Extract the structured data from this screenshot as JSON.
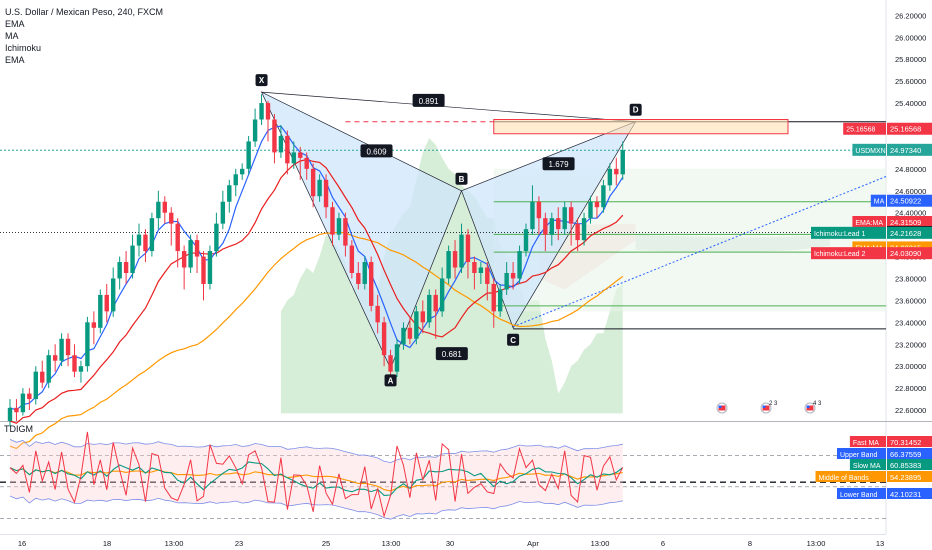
{
  "header": {
    "title": "U.S. Dollar / Mexican Peso, 240, FXCM",
    "indicators": [
      "EMA",
      "MA",
      "Ichimoku",
      "EMA"
    ]
  },
  "lower_pane": {
    "title": "TDIGM"
  },
  "colors": {
    "up": "#089981",
    "down": "#f23645",
    "ma_blue": "#2962ff",
    "ema_red": "#e91e1e",
    "ema_orange": "#ff9800",
    "harmonic_fill": "#cfe5fb",
    "cloud_green": "#a5d6a7",
    "cloud_red": "#ffcdd2",
    "price_teal": "#26a69a",
    "rsi_red": "#f23645"
  },
  "chart_data": [
    {
      "type": "candlestick",
      "title": "U.S. Dollar / Mexican Peso, 240, FXCM",
      "x_ticks": [
        "16",
        "18",
        "13:00",
        "23",
        "25",
        "13:00",
        "30",
        "Apr",
        "13:00",
        "6",
        "8",
        "13:00",
        "13"
      ],
      "y_ticks": [
        22.6,
        22.8,
        23.0,
        23.2,
        23.4,
        23.6,
        23.8,
        24.0,
        24.2,
        24.4,
        24.6,
        24.8,
        25.0,
        25.2,
        25.4,
        25.6,
        25.8,
        26.0,
        26.2
      ],
      "ylim": [
        22.5,
        26.34
      ],
      "candles": [
        [
          22.5,
          22.62,
          22.45,
          22.7
        ],
        [
          22.62,
          22.58,
          22.5,
          22.7
        ],
        [
          22.58,
          22.75,
          22.55,
          22.8
        ],
        [
          22.75,
          22.7,
          22.6,
          22.8
        ],
        [
          22.7,
          22.95,
          22.65,
          23.0
        ],
        [
          22.95,
          22.85,
          22.8,
          23.05
        ],
        [
          22.85,
          23.1,
          22.8,
          23.15
        ],
        [
          23.1,
          23.05,
          22.95,
          23.2
        ],
        [
          23.05,
          23.25,
          23.0,
          23.3
        ],
        [
          23.25,
          23.1,
          23.0,
          23.3
        ],
        [
          23.1,
          22.95,
          22.9,
          23.2
        ],
        [
          22.95,
          23.0,
          22.85,
          23.05
        ],
        [
          23.0,
          23.4,
          22.95,
          23.45
        ],
        [
          23.4,
          23.35,
          23.2,
          23.5
        ],
        [
          23.35,
          23.65,
          23.3,
          23.7
        ],
        [
          23.65,
          23.5,
          23.4,
          23.75
        ],
        [
          23.5,
          23.8,
          23.45,
          23.9
        ],
        [
          23.8,
          23.95,
          23.7,
          24.0
        ],
        [
          23.95,
          23.85,
          23.75,
          24.05
        ],
        [
          23.85,
          24.1,
          23.8,
          24.2
        ],
        [
          24.1,
          24.2,
          24.0,
          24.3
        ],
        [
          24.2,
          24.05,
          23.95,
          24.25
        ],
        [
          24.05,
          24.35,
          24.0,
          24.4
        ],
        [
          24.35,
          24.5,
          24.25,
          24.6
        ],
        [
          24.5,
          24.4,
          24.3,
          24.55
        ],
        [
          24.4,
          24.3,
          24.1,
          24.45
        ],
        [
          24.3,
          24.05,
          23.9,
          24.35
        ],
        [
          24.05,
          23.9,
          23.7,
          24.1
        ],
        [
          23.9,
          24.15,
          23.85,
          24.2
        ],
        [
          24.15,
          24.0,
          23.85,
          24.2
        ],
        [
          24.0,
          23.75,
          23.6,
          24.05
        ],
        [
          23.75,
          24.05,
          23.7,
          24.1
        ],
        [
          24.05,
          24.3,
          24.0,
          24.4
        ],
        [
          24.3,
          24.5,
          24.25,
          24.6
        ],
        [
          24.5,
          24.65,
          24.4,
          24.7
        ],
        [
          24.65,
          24.75,
          24.55,
          24.8
        ],
        [
          24.75,
          24.8,
          24.7,
          24.85
        ],
        [
          24.8,
          25.05,
          24.75,
          25.1
        ],
        [
          25.05,
          25.25,
          25.0,
          25.35
        ],
        [
          25.25,
          25.4,
          25.2,
          25.48
        ],
        [
          25.4,
          25.25,
          25.05,
          25.42
        ],
        [
          25.25,
          24.95,
          24.85,
          25.3
        ],
        [
          24.95,
          25.1,
          24.9,
          25.2
        ],
        [
          25.1,
          24.85,
          24.75,
          25.15
        ],
        [
          24.85,
          24.95,
          24.8,
          25.05
        ],
        [
          24.95,
          24.9,
          24.7,
          25.0
        ],
        [
          24.9,
          24.8,
          24.7,
          24.95
        ],
        [
          24.8,
          24.55,
          24.45,
          24.85
        ],
        [
          24.55,
          24.7,
          24.5,
          24.75
        ],
        [
          24.7,
          24.45,
          24.35,
          24.75
        ],
        [
          24.45,
          24.2,
          24.1,
          24.5
        ],
        [
          24.2,
          24.35,
          24.15,
          24.4
        ],
        [
          24.35,
          24.1,
          24.0,
          24.4
        ],
        [
          24.1,
          23.85,
          23.8,
          24.15
        ],
        [
          23.85,
          23.75,
          23.7,
          23.95
        ],
        [
          23.75,
          23.95,
          23.7,
          24.0
        ],
        [
          23.95,
          23.55,
          23.5,
          24.0
        ],
        [
          23.55,
          23.4,
          23.3,
          23.65
        ],
        [
          23.4,
          23.1,
          23.0,
          23.45
        ],
        [
          23.1,
          22.95,
          22.85,
          23.15
        ],
        [
          22.95,
          23.2,
          22.9,
          23.25
        ],
        [
          23.2,
          23.35,
          23.15,
          23.4
        ],
        [
          23.35,
          23.25,
          23.2,
          23.45
        ],
        [
          23.25,
          23.5,
          23.2,
          23.55
        ],
        [
          23.5,
          23.4,
          23.3,
          23.6
        ],
        [
          23.4,
          23.65,
          23.35,
          23.7
        ],
        [
          23.65,
          23.5,
          23.25,
          23.7
        ],
        [
          23.5,
          23.8,
          23.45,
          23.9
        ],
        [
          23.8,
          24.05,
          23.75,
          24.1
        ],
        [
          24.05,
          23.9,
          23.8,
          24.15
        ],
        [
          23.9,
          24.2,
          23.85,
          24.3
        ],
        [
          24.2,
          23.95,
          23.8,
          24.25
        ],
        [
          23.95,
          23.85,
          23.7,
          24.0
        ],
        [
          23.85,
          23.9,
          23.75,
          23.95
        ],
        [
          23.9,
          23.75,
          23.6,
          23.95
        ],
        [
          23.75,
          23.5,
          23.35,
          23.8
        ],
        [
          23.5,
          23.7,
          23.45,
          23.75
        ],
        [
          23.7,
          23.85,
          23.65,
          23.95
        ],
        [
          23.85,
          23.8,
          23.7,
          23.95
        ],
        [
          23.8,
          24.05,
          23.75,
          24.1
        ],
        [
          24.05,
          24.25,
          24.0,
          24.3
        ],
        [
          24.25,
          24.5,
          24.2,
          24.65
        ],
        [
          24.5,
          24.35,
          24.2,
          24.55
        ],
        [
          24.35,
          24.2,
          24.05,
          24.4
        ],
        [
          24.2,
          24.35,
          24.1,
          24.4
        ],
        [
          24.35,
          24.25,
          24.15,
          24.45
        ],
        [
          24.25,
          24.45,
          24.2,
          24.5
        ],
        [
          24.45,
          24.3,
          24.1,
          24.5
        ],
        [
          24.3,
          24.15,
          24.05,
          24.35
        ],
        [
          24.15,
          24.35,
          24.1,
          24.4
        ],
        [
          24.35,
          24.5,
          24.3,
          24.55
        ],
        [
          24.5,
          24.45,
          24.35,
          24.55
        ],
        [
          24.45,
          24.65,
          24.4,
          24.7
        ],
        [
          24.65,
          24.8,
          24.6,
          24.85
        ],
        [
          24.8,
          24.75,
          24.65,
          24.9
        ],
        [
          24.75,
          24.97,
          24.7,
          25.05
        ]
      ],
      "price_labels": [
        {
          "text": "25.16568",
          "value": 25.16568,
          "color": "#f23645"
        },
        {
          "text": "USDMXN",
          "value2": "24.97340",
          "value": 24.9734,
          "color": "#26a69a"
        },
        {
          "text": "MA",
          "value2": "24.50922",
          "value": 24.50922,
          "color": "#2962ff"
        },
        {
          "text": "EMA:MA",
          "value2": "24.31509",
          "value": 24.31509,
          "color": "#f23645"
        },
        {
          "text": "",
          "value2": "24.22360",
          "value": 24.2236,
          "color": "#131722"
        },
        {
          "text": "Ichimoku:Lead 1",
          "value2": "24.21628",
          "value": 24.21628,
          "color": "#089981"
        },
        {
          "text": "EMA:MA",
          "value2": "24.08315",
          "value": 24.08315,
          "color": "#ff9800"
        },
        {
          "text": "Ichimoku:Lead 2",
          "value2": "24.03090",
          "value": 24.0309,
          "color": "#f23645"
        }
      ],
      "harmonic_pattern": {
        "points": [
          "X",
          "A",
          "B",
          "C",
          "D"
        ],
        "prices": [
          25.5,
          22.98,
          24.6,
          23.35,
          25.23
        ],
        "ratios": [
          "0.891",
          "0.609",
          "1.679",
          "0.681"
        ]
      },
      "horizontal_levels": [
        25.23,
        24.97,
        24.5,
        24.22,
        24.04,
        23.55,
        23.34
      ]
    },
    {
      "type": "line",
      "title": "TDIGM",
      "series": [
        {
          "name": "Fast MA",
          "value": "70.31452",
          "color": "#f23645"
        },
        {
          "name": "Upper Band",
          "value": "66.37559",
          "color": "#2962ff"
        },
        {
          "name": "Slow MA",
          "value": "60.85383",
          "color": "#089981"
        },
        {
          "name": "Middle of Bands",
          "value": "54.23895",
          "color": "#ff9800"
        },
        {
          "name": "Lower Band",
          "value": "42.10231",
          "color": "#2962ff"
        }
      ]
    }
  ],
  "events": [
    {
      "icon": "us-flag-icon",
      "label": ""
    },
    {
      "icon": "us-flag-icon",
      "label": "2 3"
    },
    {
      "icon": "us-flag-icon",
      "label": "4 3"
    }
  ]
}
